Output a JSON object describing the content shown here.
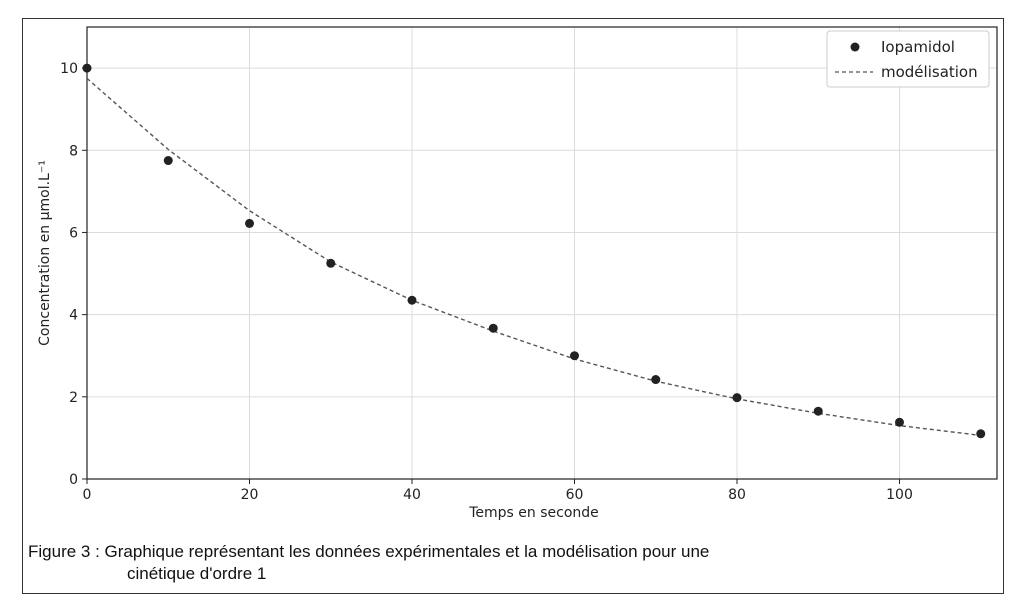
{
  "chart_data": {
    "type": "scatter",
    "xlabel": "Temps en seconde",
    "ylabel": "Concentration en μmol.L⁻¹",
    "xlim": [
      0,
      112
    ],
    "ylim": [
      0,
      11
    ],
    "xticks": [
      "0",
      "20",
      "40",
      "60",
      "80",
      "100"
    ],
    "yticks": [
      "0",
      "2",
      "4",
      "6",
      "8",
      "10"
    ],
    "grid": true,
    "legend_position": "top-right",
    "series": [
      {
        "name": "Iopamidol",
        "kind": "scatter",
        "color": "#222222",
        "x": [
          0,
          10,
          20,
          30,
          40,
          50,
          60,
          70,
          80,
          90,
          100,
          110
        ],
        "y": [
          10.0,
          7.75,
          6.22,
          5.25,
          4.35,
          3.67,
          3.0,
          2.42,
          1.98,
          1.65,
          1.38,
          1.1
        ]
      },
      {
        "name": "modélisation",
        "kind": "line",
        "style": "dashed",
        "color": "#555555",
        "x": [
          0,
          10,
          20,
          30,
          40,
          50,
          60,
          70,
          80,
          90,
          100,
          110
        ],
        "y": [
          9.75,
          8.02,
          6.53,
          5.28,
          4.35,
          3.6,
          2.92,
          2.38,
          1.95,
          1.6,
          1.3,
          1.06
        ]
      }
    ]
  },
  "caption": {
    "line1": "Figure 3 : Graphique représentant les données expérimentales et la modélisation pour une",
    "line2": "cinétique d'ordre 1"
  }
}
